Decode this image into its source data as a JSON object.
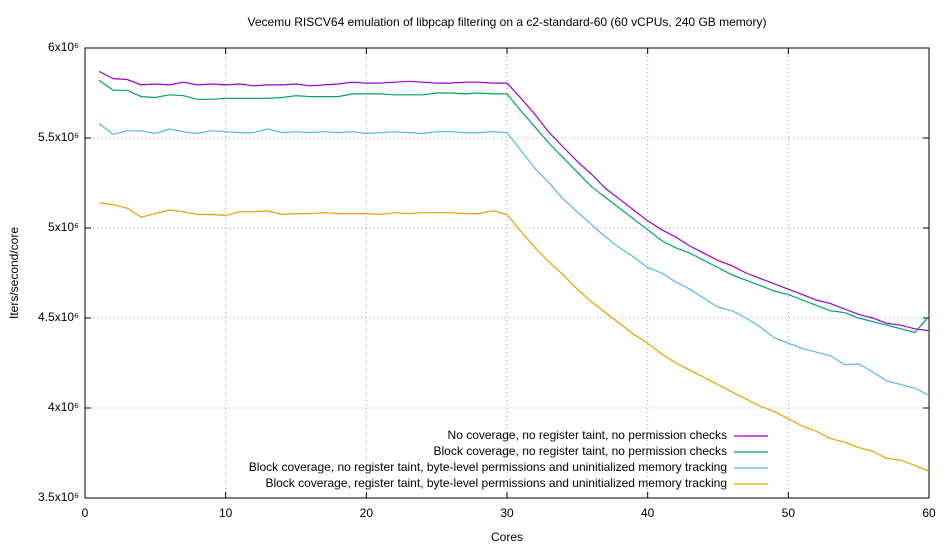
{
  "chart_data": {
    "type": "line",
    "title": "Vecemu RISCV64 emulation of libpcap filtering on a c2-standard-60 (60 vCPUs, 240 GB memory)",
    "x_label": "Cores",
    "y_label": "Iters/second/core",
    "xlim": [
      0,
      60
    ],
    "xticks": [
      0,
      10,
      20,
      30,
      40,
      50,
      60
    ],
    "ylim": [
      3500000,
      6000000
    ],
    "yticks": [
      {
        "value": 3500000,
        "label": "3.5x10⁶"
      },
      {
        "value": 4000000,
        "label": "4x10⁶"
      },
      {
        "value": 4500000,
        "label": "4.5x10⁶"
      },
      {
        "value": 5000000,
        "label": "5x10⁶"
      },
      {
        "value": 5500000,
        "label": "5.5x10⁶"
      },
      {
        "value": 6000000,
        "label": "6x10⁶"
      }
    ],
    "grid": true,
    "legend": "lower right",
    "x": [
      1,
      2,
      3,
      4,
      5,
      6,
      7,
      8,
      9,
      10,
      11,
      12,
      13,
      14,
      15,
      16,
      17,
      18,
      19,
      20,
      21,
      22,
      23,
      24,
      25,
      26,
      27,
      28,
      29,
      30,
      31,
      32,
      33,
      34,
      35,
      36,
      37,
      38,
      39,
      40,
      41,
      42,
      43,
      44,
      45,
      46,
      47,
      48,
      49,
      50,
      51,
      52,
      53,
      54,
      55,
      56,
      57,
      58,
      59,
      60
    ],
    "series": [
      {
        "name": "No coverage, no register taint, no permission checks",
        "color": "#9400d3",
        "values": [
          5870000,
          5830000,
          5825000,
          5795000,
          5800000,
          5795000,
          5810000,
          5795000,
          5800000,
          5795000,
          5800000,
          5790000,
          5795000,
          5795000,
          5800000,
          5790000,
          5795000,
          5800000,
          5810000,
          5805000,
          5805000,
          5810000,
          5815000,
          5810000,
          5805000,
          5805000,
          5810000,
          5810000,
          5805000,
          5805000,
          5720000,
          5630000,
          5530000,
          5450000,
          5370000,
          5300000,
          5220000,
          5160000,
          5100000,
          5040000,
          4990000,
          4950000,
          4900000,
          4860000,
          4820000,
          4790000,
          4750000,
          4720000,
          4690000,
          4660000,
          4630000,
          4600000,
          4580000,
          4550000,
          4520000,
          4500000,
          4470000,
          4460000,
          4440000,
          4430000
        ]
      },
      {
        "name": "Block coverage, no register taint, no permission checks",
        "color": "#009e73",
        "values": [
          5820000,
          5765000,
          5765000,
          5730000,
          5725000,
          5740000,
          5735000,
          5715000,
          5715000,
          5720000,
          5720000,
          5720000,
          5720000,
          5725000,
          5735000,
          5730000,
          5730000,
          5730000,
          5745000,
          5745000,
          5745000,
          5740000,
          5740000,
          5740000,
          5750000,
          5750000,
          5745000,
          5750000,
          5745000,
          5745000,
          5650000,
          5560000,
          5470000,
          5390000,
          5310000,
          5230000,
          5170000,
          5110000,
          5050000,
          4990000,
          4930000,
          4890000,
          4860000,
          4820000,
          4780000,
          4740000,
          4710000,
          4680000,
          4650000,
          4630000,
          4600000,
          4570000,
          4540000,
          4530000,
          4500000,
          4480000,
          4460000,
          4440000,
          4420000,
          4510000
        ]
      },
      {
        "name": "Block coverage, no register taint, byte-level permissions and uninitialized memory tracking",
        "color": "#56b4e9",
        "values": [
          5580000,
          5520000,
          5540000,
          5540000,
          5525000,
          5550000,
          5535000,
          5525000,
          5540000,
          5535000,
          5530000,
          5530000,
          5550000,
          5530000,
          5535000,
          5530000,
          5535000,
          5530000,
          5535000,
          5525000,
          5530000,
          5535000,
          5530000,
          5525000,
          5535000,
          5535000,
          5530000,
          5530000,
          5535000,
          5530000,
          5430000,
          5330000,
          5250000,
          5160000,
          5090000,
          5020000,
          4950000,
          4890000,
          4840000,
          4780000,
          4750000,
          4700000,
          4660000,
          4610000,
          4560000,
          4540000,
          4500000,
          4450000,
          4390000,
          4360000,
          4330000,
          4310000,
          4290000,
          4240000,
          4245000,
          4200000,
          4150000,
          4130000,
          4110000,
          4070000
        ]
      },
      {
        "name": "Block coverage, register taint, byte-level permissions and uninitialized memory tracking",
        "color": "#e69f00",
        "values": [
          5140000,
          5130000,
          5110000,
          5060000,
          5080000,
          5100000,
          5090000,
          5075000,
          5075000,
          5070000,
          5090000,
          5090000,
          5095000,
          5075000,
          5080000,
          5080000,
          5085000,
          5080000,
          5080000,
          5080000,
          5075000,
          5085000,
          5080000,
          5085000,
          5085000,
          5085000,
          5080000,
          5080000,
          5095000,
          5075000,
          4980000,
          4890000,
          4810000,
          4740000,
          4660000,
          4590000,
          4530000,
          4470000,
          4410000,
          4360000,
          4300000,
          4250000,
          4210000,
          4170000,
          4130000,
          4090000,
          4050000,
          4010000,
          3980000,
          3940000,
          3900000,
          3870000,
          3830000,
          3810000,
          3780000,
          3760000,
          3720000,
          3710000,
          3680000,
          3650000
        ]
      }
    ]
  }
}
